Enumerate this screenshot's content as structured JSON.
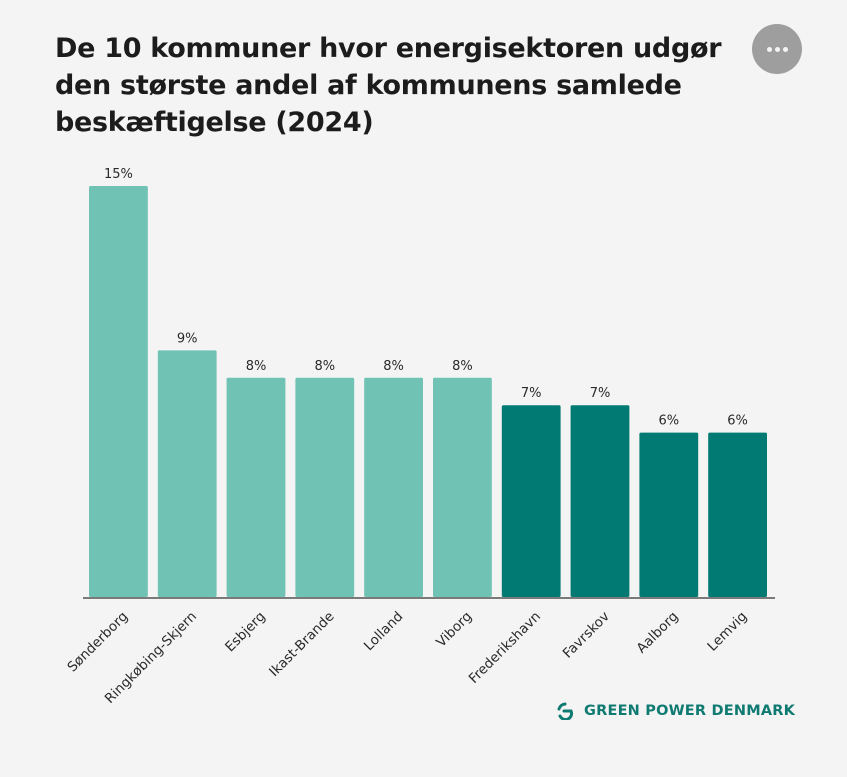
{
  "header": {
    "title": "De 10 kommuner hvor energisektoren udgør den største andel af kommunens samlede beskæftigelse (2024)",
    "menu_icon": "more-horizontal-icon"
  },
  "footer": {
    "brand_name": "GREEN POWER DENMARK",
    "brand_icon": "green-power-denmark-logo-icon",
    "brand_color": "#0f7a72"
  },
  "chart_data": {
    "type": "bar",
    "title": "De 10 kommuner hvor energisektoren udgør den største andel af kommunens samlede beskæftigelse (2024)",
    "xlabel": "",
    "ylabel": "",
    "ylim": [
      0,
      15
    ],
    "grid": false,
    "legend": "none",
    "unit": "%",
    "categories": [
      "Sønderborg",
      "Ringkøbing-Skjern",
      "Esbjerg",
      "Ikast-Brande",
      "Lolland",
      "Viborg",
      "Frederikshavn",
      "Favrskov",
      "Aalborg",
      "Lemvig"
    ],
    "values": [
      15,
      9,
      8,
      8,
      8,
      8,
      7,
      7,
      6,
      6
    ],
    "data_labels": [
      "15%",
      "9%",
      "8%",
      "8%",
      "8%",
      "8%",
      "7%",
      "7%",
      "6%",
      "6%"
    ],
    "bar_colors": [
      "#70c2b5",
      "#70c2b5",
      "#70c2b5",
      "#70c2b5",
      "#70c2b5",
      "#70c2b5",
      "#007a72",
      "#007a72",
      "#007a72",
      "#007a72"
    ],
    "axis_color": "#7a7a7a"
  }
}
